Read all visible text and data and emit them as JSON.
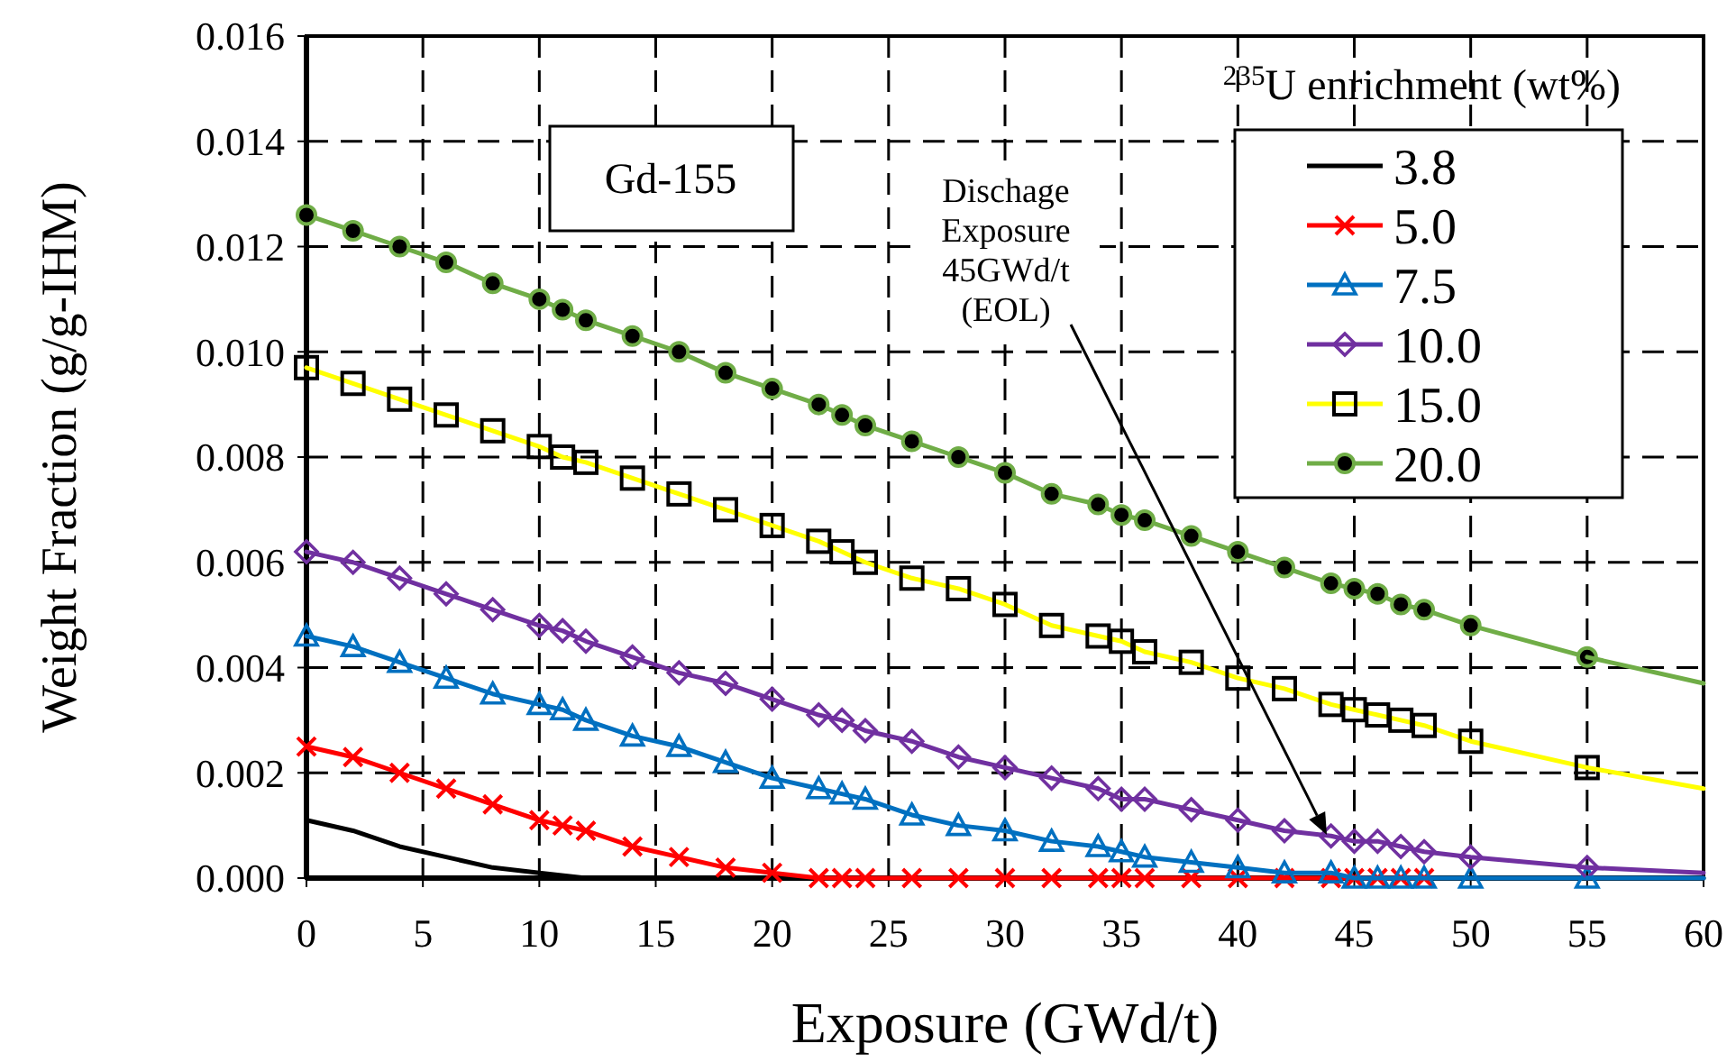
{
  "chart_data": {
    "type": "line",
    "xlabel": "Exposure (GWd/t)",
    "ylabel": "Weight Fraction (g/g-IHM)",
    "legend_title": "$^{235}$U enrichment (wt%)",
    "legend": "top right",
    "grid": true,
    "line_style": "solid",
    "xlim": [
      0,
      60
    ],
    "xticks": [
      0,
      5,
      10,
      15,
      20,
      25,
      30,
      35,
      40,
      45,
      50,
      55,
      60
    ],
    "ylim": [
      0,
      0.016
    ],
    "yticks": [
      {
        "value": 0,
        "label": "0.000"
      },
      {
        "value": 0.002,
        "label": "0.002"
      },
      {
        "value": 0.004,
        "label": "0.004"
      },
      {
        "value": 0.006,
        "label": "0.006"
      },
      {
        "value": 0.008,
        "label": "0.008"
      },
      {
        "value": 0.01,
        "label": "0.010"
      },
      {
        "value": 0.012,
        "label": "0.012"
      },
      {
        "value": 0.014,
        "label": "0.014"
      },
      {
        "value": 0.016,
        "label": "0.016"
      }
    ],
    "annotations": [
      "Gd-155",
      "Dischage\nExposure\n45GWd/t\n(EOL)"
    ],
    "series": [
      {
        "name": "3.8",
        "color": "#000000",
        "marker": "none",
        "x": [
          0,
          2,
          4,
          6,
          8,
          10,
          12,
          20,
          30,
          40,
          50,
          60
        ],
        "values": [
          0.0011,
          0.0009,
          0.0006,
          0.0004,
          0.0002,
          0.0001,
          0,
          0,
          0,
          0,
          0,
          0
        ]
      },
      {
        "name": "5.0",
        "color": "#ff0000",
        "marker": "cross",
        "x": [
          0,
          2,
          4,
          6,
          8,
          10,
          11,
          12,
          14,
          16,
          18,
          20,
          22,
          23,
          24,
          26,
          28,
          30,
          32,
          34,
          35,
          36,
          38,
          40,
          42,
          44,
          45,
          46,
          47,
          48
        ],
        "values": [
          0.0025,
          0.0023,
          0.002,
          0.0017,
          0.0014,
          0.0011,
          0.001,
          0.0009,
          0.0006,
          0.0004,
          0.0002,
          0.0001,
          0,
          0,
          0,
          0,
          0,
          0,
          0,
          0,
          0,
          0,
          0,
          0,
          0,
          0,
          0,
          0,
          0,
          0
        ]
      },
      {
        "name": "7.5",
        "color": "#0070c0",
        "marker": "triangle",
        "x": [
          0,
          2,
          4,
          6,
          8,
          10,
          11,
          12,
          14,
          16,
          18,
          20,
          22,
          23,
          24,
          26,
          28,
          30,
          32,
          34,
          35,
          36,
          38,
          40,
          42,
          44,
          45,
          46,
          47,
          48,
          50,
          55
        ],
        "values": [
          0.0046,
          0.0044,
          0.0041,
          0.0038,
          0.0035,
          0.0033,
          0.0032,
          0.003,
          0.0027,
          0.0025,
          0.0022,
          0.0019,
          0.0017,
          0.0016,
          0.0015,
          0.0012,
          0.001,
          0.0009,
          0.0007,
          0.0006,
          0.0005,
          0.0004,
          0.0003,
          0.0002,
          0.0001,
          0.0001,
          0,
          0,
          0,
          0,
          0,
          0
        ]
      },
      {
        "name": "10.0",
        "color": "#7030a0",
        "marker": "diamond",
        "x": [
          0,
          2,
          4,
          6,
          8,
          10,
          11,
          12,
          14,
          16,
          18,
          20,
          22,
          23,
          24,
          26,
          28,
          30,
          32,
          34,
          35,
          36,
          38,
          40,
          42,
          44,
          45,
          46,
          47,
          48,
          50,
          55
        ],
        "values": [
          0.0062,
          0.006,
          0.0057,
          0.0054,
          0.0051,
          0.0048,
          0.0047,
          0.0045,
          0.0042,
          0.0039,
          0.0037,
          0.0034,
          0.0031,
          0.003,
          0.0028,
          0.0026,
          0.0023,
          0.0021,
          0.0019,
          0.0017,
          0.0015,
          0.0015,
          0.0013,
          0.0011,
          0.0009,
          0.0008,
          0.0007,
          0.0007,
          0.0006,
          0.0005,
          0.0004,
          0.0002
        ]
      },
      {
        "name": "15.0",
        "color": "#ffff00",
        "marker": "square",
        "x": [
          0,
          2,
          4,
          6,
          8,
          10,
          11,
          12,
          14,
          16,
          18,
          20,
          22,
          23,
          24,
          26,
          28,
          30,
          32,
          34,
          35,
          36,
          38,
          40,
          42,
          44,
          45,
          46,
          47,
          48,
          50,
          55
        ],
        "values": [
          0.0097,
          0.0094,
          0.0091,
          0.0088,
          0.0085,
          0.0082,
          0.008,
          0.0079,
          0.0076,
          0.0073,
          0.007,
          0.0067,
          0.0064,
          0.0062,
          0.006,
          0.0057,
          0.0055,
          0.0052,
          0.0048,
          0.0046,
          0.0045,
          0.0043,
          0.0041,
          0.0038,
          0.0036,
          0.0033,
          0.0032,
          0.0031,
          0.003,
          0.0029,
          0.0026,
          0.0021
        ]
      },
      {
        "name": "20.0",
        "color": "#70ad47",
        "marker": "circle",
        "x": [
          0,
          2,
          4,
          6,
          8,
          10,
          11,
          12,
          14,
          16,
          18,
          20,
          22,
          23,
          24,
          26,
          28,
          30,
          32,
          34,
          35,
          36,
          38,
          40,
          42,
          44,
          45,
          46,
          47,
          48,
          50,
          55
        ],
        "values": [
          0.0126,
          0.0123,
          0.012,
          0.0117,
          0.0113,
          0.011,
          0.0108,
          0.0106,
          0.0103,
          0.01,
          0.0096,
          0.0093,
          0.009,
          0.0088,
          0.0086,
          0.0083,
          0.008,
          0.0077,
          0.0073,
          0.0071,
          0.0069,
          0.0068,
          0.0065,
          0.0062,
          0.0059,
          0.0056,
          0.0055,
          0.0054,
          0.0052,
          0.0051,
          0.0048,
          0.0042
        ]
      },
      {
        "color": "#0070c0",
        "marker": "none",
        "x": [
          55,
          60
        ],
        "values": [
          0,
          0
        ]
      },
      {
        "color": "#7030a0",
        "marker": "none",
        "x": [
          55,
          60
        ],
        "values": [
          0.0002,
          0.0001
        ]
      },
      {
        "color": "#ffff00",
        "marker": "none",
        "x": [
          55,
          60
        ],
        "values": [
          0.0021,
          0.0017
        ]
      },
      {
        "color": "#70ad47",
        "marker": "none",
        "x": [
          55,
          60
        ],
        "values": [
          0.0042,
          0.0037
        ]
      }
    ]
  }
}
